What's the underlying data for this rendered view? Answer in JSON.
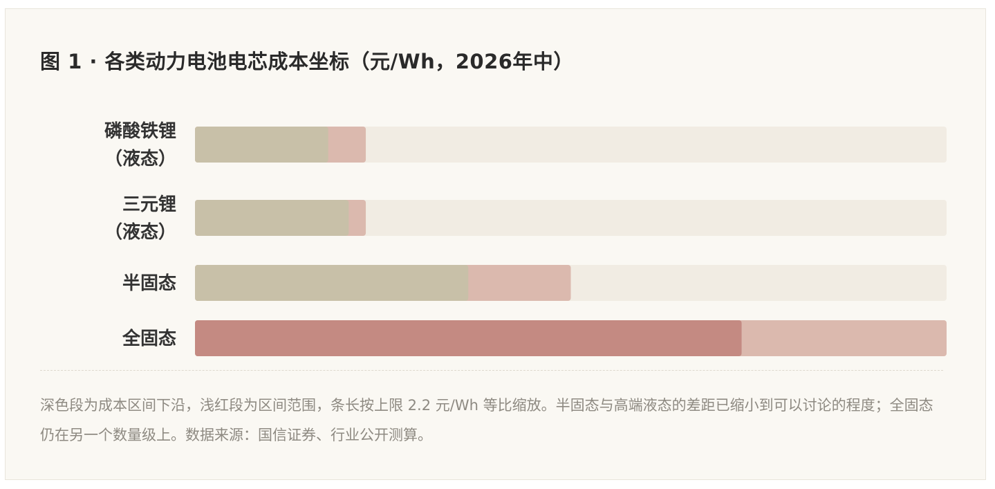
{
  "title": "图 1 · 各类动力电池电芯成本坐标（元/Wh，2026年中）",
  "note": "深色段为成本区间下沿，浅红段为区间范围，条长按上限 2.2 元/Wh 等比缩放。半固态与高端液态的差距已缩小到可以讨论的程度；全固态仍在另一个数量级上。数据来源：国信证券、行业公开测算。",
  "colors": {
    "track": "#f1ece3",
    "low_neutral": "#c8c0a8",
    "range": "#dbb9ae",
    "low_highlight": "#c48a82"
  },
  "chart_data": {
    "type": "bar",
    "orientation": "horizontal",
    "stacked": "range",
    "unit": "元/Wh",
    "scale_max": 2.2,
    "categories": [
      {
        "line1": "磷酸铁锂",
        "line2": "（液态）"
      },
      {
        "line1": "三元锂",
        "line2": "（液态）"
      },
      {
        "line1": "半固态",
        "line2": ""
      },
      {
        "line1": "全固态",
        "line2": ""
      }
    ],
    "low": [
      0.39,
      0.45,
      0.8,
      1.6
    ],
    "high": [
      0.5,
      0.5,
      1.1,
      2.2
    ],
    "highlight": [
      false,
      false,
      false,
      true
    ],
    "grid": false,
    "legend": "none"
  }
}
